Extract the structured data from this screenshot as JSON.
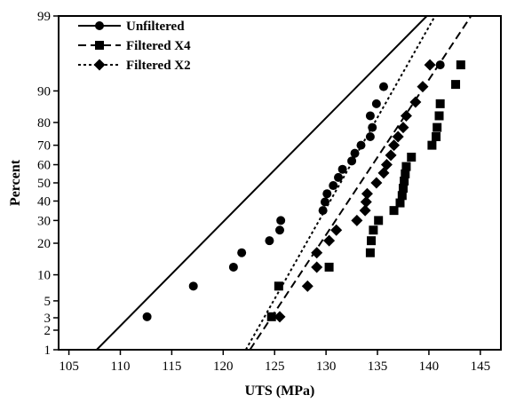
{
  "chart_data": {
    "type": "scatter",
    "title": "",
    "xlabel": "UTS (MPa)",
    "ylabel": "Percent",
    "xlim": [
      104,
      147
    ],
    "ylim": [
      1,
      99
    ],
    "y_scale": "normal-probability",
    "x_ticks": [
      105,
      110,
      115,
      120,
      125,
      130,
      135,
      140,
      145
    ],
    "x_tick_labels": [
      "105",
      "110",
      "115",
      "120",
      "125",
      "130",
      "135",
      "140",
      "145"
    ],
    "y_ticks": [
      1,
      2,
      3,
      5,
      10,
      20,
      30,
      40,
      50,
      60,
      70,
      80,
      90,
      99
    ],
    "y_tick_labels": [
      "1",
      "2",
      "3",
      "5",
      "10",
      "20",
      "30",
      "40",
      "50",
      "60",
      "70",
      "80",
      "90",
      "99"
    ],
    "grid": false,
    "legend_position": "top-left",
    "series": [
      {
        "name": "Unfiltered",
        "marker": "circle",
        "line_style": "solid",
        "fit_line": [
          [
            107.7,
            1
          ],
          [
            139.8,
            99
          ]
        ],
        "points": [
          [
            112.6,
            3.1
          ],
          [
            117.1,
            7.5
          ],
          [
            121.0,
            12
          ],
          [
            121.8,
            16.5
          ],
          [
            124.5,
            21
          ],
          [
            125.5,
            25.5
          ],
          [
            125.6,
            30
          ],
          [
            129.7,
            35
          ],
          [
            129.9,
            39.5
          ],
          [
            130.1,
            44
          ],
          [
            130.7,
            48.5
          ],
          [
            131.2,
            53
          ],
          [
            131.6,
            57.5
          ],
          [
            132.5,
            62
          ],
          [
            132.8,
            66
          ],
          [
            133.4,
            70
          ],
          [
            134.3,
            74
          ],
          [
            134.5,
            78
          ],
          [
            134.3,
            82.5
          ],
          [
            134.9,
            86.5
          ],
          [
            135.6,
            91
          ],
          [
            141.1,
            95
          ]
        ]
      },
      {
        "name": "Filtered X4",
        "marker": "square",
        "line_style": "dashed",
        "fit_line": [
          [
            122.6,
            1
          ],
          [
            144.1,
            99
          ]
        ],
        "points": [
          [
            124.7,
            3.1
          ],
          [
            125.4,
            7.5
          ],
          [
            130.3,
            12
          ],
          [
            134.3,
            16.5
          ],
          [
            134.4,
            21
          ],
          [
            134.6,
            25.5
          ],
          [
            135.1,
            30
          ],
          [
            136.6,
            35
          ],
          [
            137.2,
            39
          ],
          [
            137.4,
            43
          ],
          [
            137.5,
            47
          ],
          [
            137.6,
            51
          ],
          [
            137.7,
            55
          ],
          [
            137.8,
            59
          ],
          [
            138.3,
            64
          ],
          [
            140.3,
            70
          ],
          [
            140.7,
            74
          ],
          [
            140.8,
            78
          ],
          [
            141.0,
            82.5
          ],
          [
            141.1,
            86.5
          ],
          [
            142.6,
            91.5
          ],
          [
            143.1,
            95
          ]
        ]
      },
      {
        "name": "Filtered X2",
        "marker": "diamond",
        "line_style": "dotted",
        "fit_line": [
          [
            122.2,
            1
          ],
          [
            140.6,
            99
          ]
        ],
        "points": [
          [
            125.5,
            3.1
          ],
          [
            128.2,
            7.5
          ],
          [
            129.1,
            12
          ],
          [
            129.1,
            16.5
          ],
          [
            130.3,
            21
          ],
          [
            131.0,
            25.5
          ],
          [
            133.0,
            30
          ],
          [
            133.8,
            35
          ],
          [
            133.9,
            39.5
          ],
          [
            134.0,
            44
          ],
          [
            134.9,
            50
          ],
          [
            135.6,
            55.5
          ],
          [
            135.9,
            60
          ],
          [
            136.3,
            65
          ],
          [
            136.6,
            70
          ],
          [
            137.0,
            74
          ],
          [
            137.5,
            78
          ],
          [
            137.8,
            82.5
          ],
          [
            138.7,
            87
          ],
          [
            139.4,
            91
          ],
          [
            140.1,
            95
          ]
        ]
      }
    ]
  }
}
